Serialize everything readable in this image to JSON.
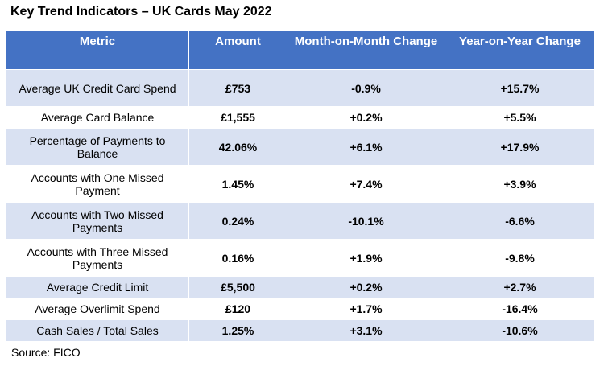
{
  "title": "Key Trend Indicators – UK Cards May 2022",
  "columns": [
    "Metric",
    "Amount",
    "Month-on-Month Change",
    "Year-on-Year Change"
  ],
  "rows": [
    {
      "metric": "Average UK Credit Card Spend",
      "amount": "£753",
      "mom": "-0.9%",
      "yoy": "+15.7%"
    },
    {
      "metric": "Average Card Balance",
      "amount": "£1,555",
      "mom": "+0.2%",
      "yoy": "+5.5%"
    },
    {
      "metric": "Percentage of Payments to Balance",
      "amount": "42.06%",
      "mom": "+6.1%",
      "yoy": "+17.9%"
    },
    {
      "metric": "Accounts with One Missed Payment",
      "amount": "1.45%",
      "mom": "+7.4%",
      "yoy": "+3.9%"
    },
    {
      "metric": "Accounts with Two Missed Payments",
      "amount": "0.24%",
      "mom": "-10.1%",
      "yoy": "-6.6%"
    },
    {
      "metric": "Accounts with Three Missed Payments",
      "amount": "0.16%",
      "mom": "+1.9%",
      "yoy": "-9.8%"
    },
    {
      "metric": "Average Credit Limit",
      "amount": "£5,500",
      "mom": "+0.2%",
      "yoy": "+2.7%"
    },
    {
      "metric": "Average Overlimit Spend",
      "amount": "£120",
      "mom": "+1.7%",
      "yoy": "-16.4%"
    },
    {
      "metric": "Cash Sales / Total Sales",
      "amount": "1.25%",
      "mom": "+3.1%",
      "yoy": "-10.6%"
    }
  ],
  "source": "Source: FICO",
  "colors": {
    "header_bg": "#4472c4",
    "header_text": "#ffffff",
    "band_bg": "#d9e1f2",
    "plain_bg": "#ffffff"
  }
}
